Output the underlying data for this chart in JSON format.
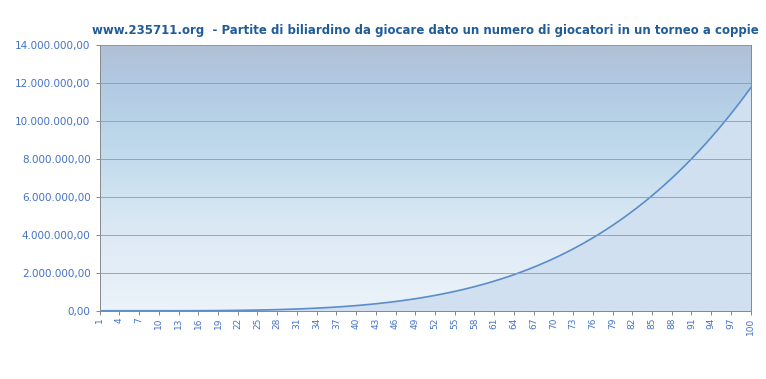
{
  "title": "www.235711.org  - Partite di biliardino da giocare dato un numero di giocatori in un torneo a coppie",
  "title_color": "#1F5C9A",
  "background_color": "#FFFFFF",
  "plot_bg_top": "#C8D8EE",
  "plot_bg_bottom": "#E8F0F8",
  "line_color": "#5B8DC8",
  "fill_color": "#D0E0F0",
  "ylim": [
    0,
    14000000
  ],
  "yticks": [
    0,
    2000000,
    4000000,
    6000000,
    8000000,
    10000000,
    12000000,
    14000000
  ],
  "tick_color": "#4472C4",
  "grid_color": "#999999",
  "n_players_max": 100,
  "x_tick_labels": [
    1,
    4,
    7,
    10,
    13,
    16,
    19,
    22,
    25,
    28,
    31,
    34,
    37,
    40,
    43,
    46,
    49,
    52,
    55,
    58,
    61,
    64,
    67,
    70,
    73,
    76,
    79,
    82,
    85,
    88,
    91,
    94,
    97,
    100
  ]
}
